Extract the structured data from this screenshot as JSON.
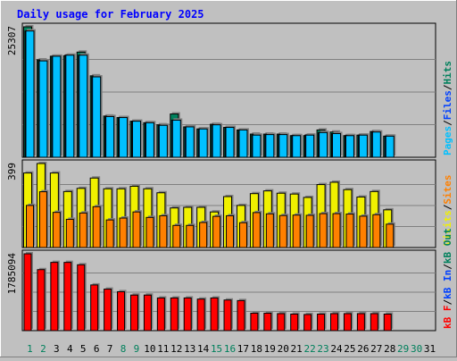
{
  "chart_data": [
    {
      "type": "bar",
      "title": "Daily usage for February 2025",
      "panel": "hits-files-pages",
      "y_max_label": "25307",
      "ylim": [
        0,
        25307
      ],
      "legend": [
        {
          "label": "Pages",
          "color": "#00c0ff"
        },
        {
          "label": "/",
          "color": "#000000"
        },
        {
          "label": "Files",
          "color": "#0040ff"
        },
        {
          "label": "/",
          "color": "#000000"
        },
        {
          "label": "Hits",
          "color": "#00805c"
        }
      ],
      "categories": [
        "1",
        "2",
        "3",
        "4",
        "5",
        "6",
        "7",
        "8",
        "9",
        "10",
        "11",
        "12",
        "13",
        "14",
        "15",
        "16",
        "17",
        "18",
        "19",
        "20",
        "21",
        "22",
        "23",
        "24",
        "25",
        "26",
        "27",
        "28",
        "29",
        "30",
        "31"
      ],
      "series": [
        {
          "name": "Hits",
          "color": "#00805c",
          "values": [
            25307,
            18900,
            19600,
            19700,
            20400,
            15800,
            8000,
            7700,
            7000,
            6700,
            6300,
            8400,
            5900,
            5500,
            6400,
            5800,
            5300,
            4500,
            4500,
            4500,
            4200,
            4200,
            5300,
            4900,
            4200,
            4300,
            5000,
            4100,
            null,
            null,
            null
          ]
        },
        {
          "name": "Files",
          "color": "#0040ff",
          "values": [
            24500,
            18700,
            19600,
            19800,
            19800,
            15600,
            7900,
            7700,
            7000,
            6700,
            6200,
            7200,
            5900,
            5500,
            6300,
            5800,
            5300,
            4300,
            4400,
            4400,
            4200,
            4300,
            4800,
            4600,
            4200,
            4300,
            4900,
            4100,
            null,
            null,
            null
          ]
        },
        {
          "name": "Pages",
          "color": "#00c0ff",
          "values": [
            24500,
            18700,
            19600,
            19800,
            19800,
            15600,
            7900,
            7700,
            7000,
            6700,
            6200,
            7200,
            5900,
            5500,
            6300,
            5800,
            5300,
            4300,
            4400,
            4400,
            4200,
            4300,
            4800,
            4600,
            4200,
            4300,
            4900,
            4100,
            null,
            null,
            null
          ]
        }
      ]
    },
    {
      "type": "bar",
      "panel": "visits-sites",
      "y_max_label": "399",
      "ylim": [
        0,
        399
      ],
      "legend": [
        {
          "label": "Visits",
          "color": "#f0f000"
        },
        {
          "label": "/",
          "color": "#000000"
        },
        {
          "label": "Sites",
          "color": "#ff8000"
        }
      ],
      "series": [
        {
          "name": "Visits",
          "color": "#f0f000",
          "values": [
            354,
            399,
            354,
            266,
            281,
            330,
            279,
            279,
            291,
            279,
            260,
            188,
            191,
            191,
            169,
            242,
            200,
            256,
            269,
            258,
            254,
            238,
            299,
            310,
            275,
            240,
            266,
            179,
            null,
            null,
            null
          ]
        },
        {
          "name": "Sites",
          "color": "#ff8000",
          "values": [
            200,
            265,
            167,
            134,
            164,
            194,
            131,
            140,
            169,
            143,
            151,
            105,
            105,
            119,
            148,
            151,
            118,
            166,
            160,
            152,
            154,
            153,
            161,
            161,
            159,
            149,
            156,
            111,
            null,
            null,
            null
          ]
        }
      ]
    },
    {
      "type": "bar",
      "panel": "kbytes",
      "y_max_label": "1785094",
      "ylim": [
        0,
        1785094
      ],
      "legend": [
        {
          "label": "kB F",
          "color": "#ff0000"
        },
        {
          "label": "/",
          "color": "#000000"
        },
        {
          "label": "kB In",
          "color": "#0040ff"
        },
        {
          "label": "/",
          "color": "#000000"
        },
        {
          "label": "kB Out",
          "color": "#00805c"
        }
      ],
      "series": [
        {
          "name": "kB F",
          "color": "#ff0000",
          "values": [
            1785094,
            1417000,
            1585000,
            1585000,
            1530000,
            1061000,
            964000,
            904000,
            826000,
            826000,
            759000,
            759000,
            759000,
            733000,
            759000,
            711000,
            698000,
            405000,
            405000,
            395000,
            384000,
            375000,
            384000,
            395000,
            395000,
            395000,
            395000,
            384000,
            null,
            null,
            null
          ]
        }
      ]
    }
  ],
  "x_labels": [
    "1",
    "2",
    "3",
    "4",
    "5",
    "6",
    "7",
    "8",
    "9",
    "10",
    "11",
    "12",
    "13",
    "14",
    "15",
    "16",
    "17",
    "18",
    "19",
    "20",
    "21",
    "22",
    "23",
    "24",
    "25",
    "26",
    "27",
    "28",
    "29",
    "30",
    "31"
  ],
  "weekend_days": [
    "1",
    "2",
    "8",
    "9",
    "15",
    "16",
    "22",
    "23",
    "29",
    "30"
  ],
  "colors": {
    "background": "#c0c0c0",
    "plot": "#c0c0c0",
    "grid": "#808080",
    "title": "#0000ff",
    "weekday_label": "#000000",
    "weekend_label": "#00805c"
  }
}
